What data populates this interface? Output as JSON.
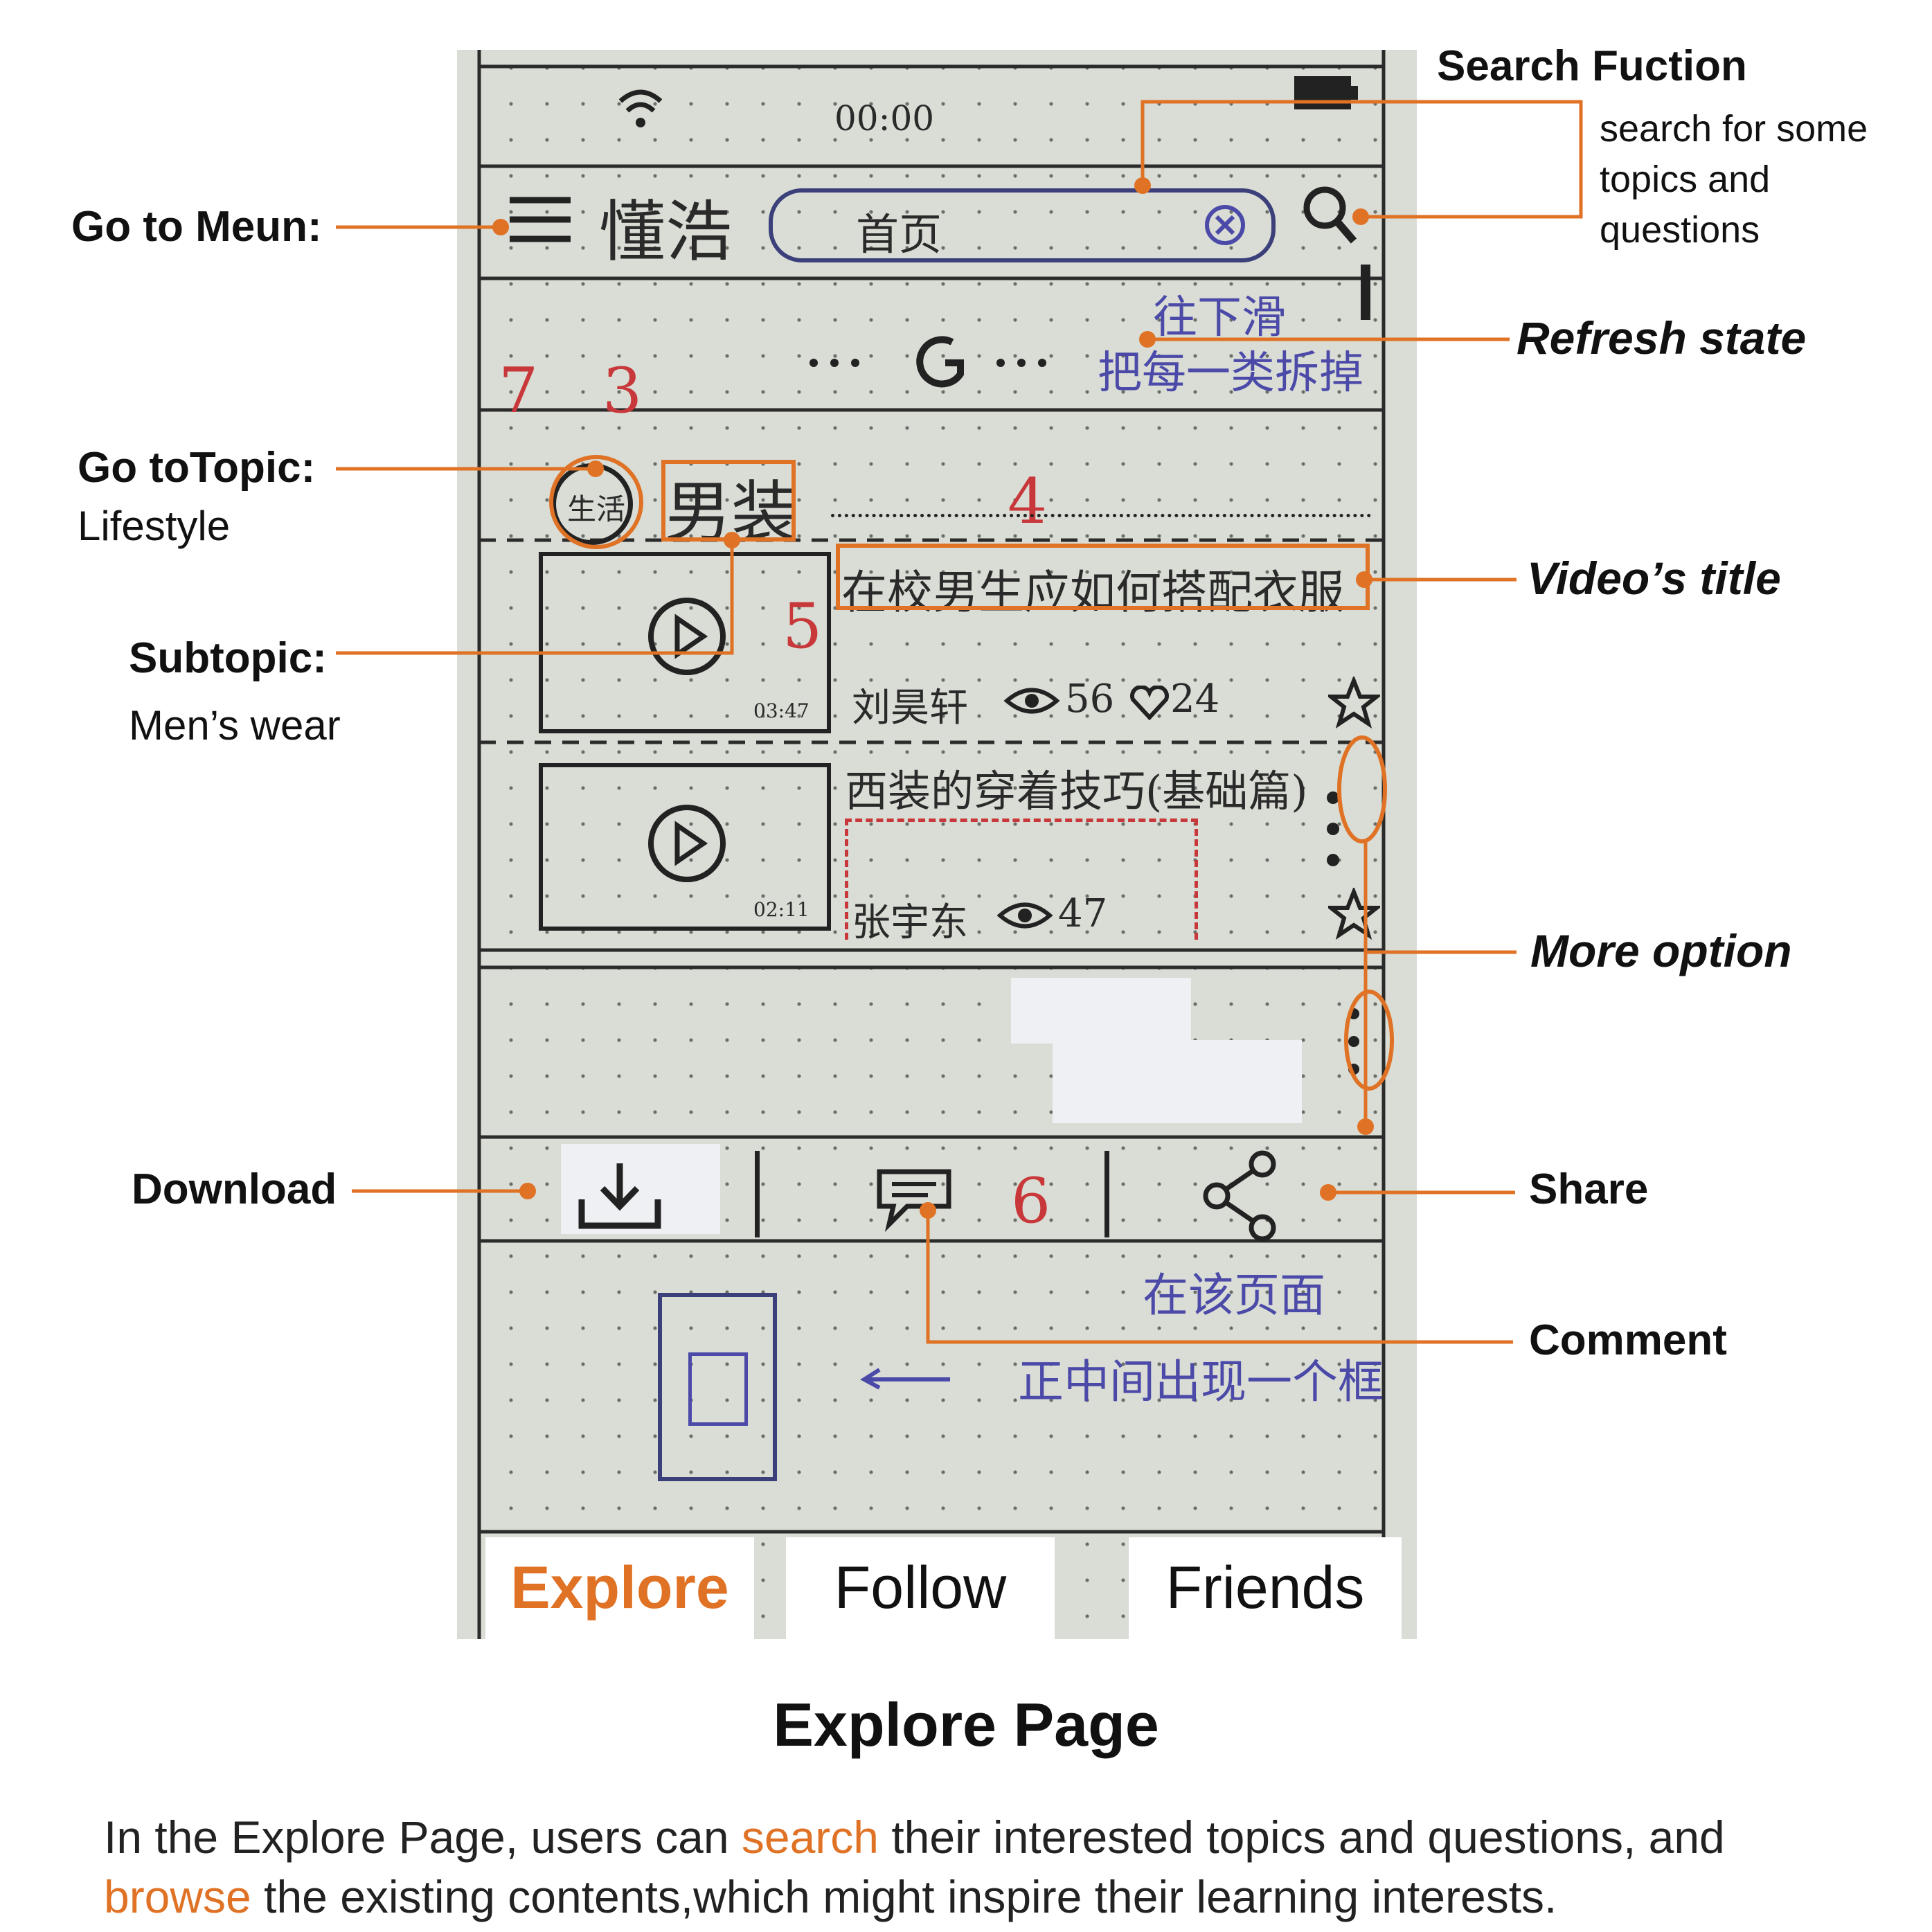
{
  "phone": {
    "status_time": "00:00",
    "app_name": "懂浩",
    "search_value": "首页",
    "refresh_note_line1": "往下滑",
    "refresh_note_line2": "把每一类拆掉",
    "topic_badge": "生活",
    "subtopic_label": "男装",
    "feed": [
      {
        "title": "在校男生应如何搭配衣服",
        "duration": "03:47",
        "author": "刘昊轩",
        "views": "56",
        "likes": "24"
      },
      {
        "title": "西装的穿着技巧(基础篇)",
        "duration": "02:11",
        "author": "张宇东",
        "views": "47"
      }
    ],
    "comment_note_line1": "在该页面",
    "comment_note_line2": "正中间出现一个框",
    "red_numbers": [
      "7",
      "3",
      "4",
      "5",
      "6"
    ],
    "tabs": [
      {
        "label": "Explore",
        "active": true
      },
      {
        "label": "Follow",
        "active": false
      },
      {
        "label": "Friends",
        "active": false
      }
    ]
  },
  "annotations": {
    "menu": "Go to Meun:",
    "search_title": "Search Fuction",
    "search_desc": "search for some topics and questions",
    "refresh": "Refresh state",
    "topic_title": "Go toTopic:",
    "topic_sub": "Lifestyle",
    "video_title": "Video’s title",
    "subtopic_title": "Subtopic:",
    "subtopic_sub": "Men’s wear",
    "more_option": "More option",
    "download": "Download",
    "share": "Share",
    "comment": "Comment"
  },
  "caption": {
    "title": "Explore Page",
    "desc_1": "In the Explore Page, users can ",
    "desc_search": "search",
    "desc_2": " their interested topics and questions, and ",
    "desc_browse": "browse",
    "desc_3": " the existing contents,which might inspire their learning interests."
  },
  "colors": {
    "accent": "#e07225",
    "paper": "#d9ddd5",
    "pen_blue": "#4c4aa8",
    "pen_red": "#c8383a"
  }
}
